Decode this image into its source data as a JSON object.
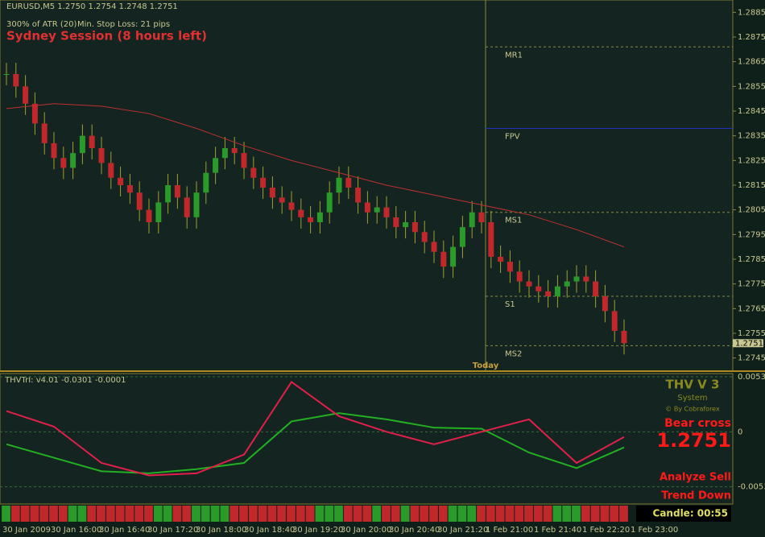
{
  "header": {
    "symbol": "EURUSD,M5  1.2750 1.2754 1.2748 1.2751",
    "atr": "300% of ATR (20)",
    "stop": "Min. Stop Loss:  21 pips",
    "session": "Sydney Session (8 hours left)"
  },
  "chart_data": {
    "type": "candlestick",
    "ylim": [
      1.274,
      1.289
    ],
    "yticks": [
      1.2885,
      1.2875,
      1.2865,
      1.2855,
      1.2845,
      1.2835,
      1.2825,
      1.2815,
      1.2805,
      1.2795,
      1.2785,
      1.2775,
      1.2765,
      1.2755,
      1.2745
    ],
    "close": [
      1.286,
      1.2855,
      1.2848,
      1.284,
      1.2832,
      1.2826,
      1.2822,
      1.2828,
      1.2835,
      1.283,
      1.2824,
      1.2818,
      1.2815,
      1.2812,
      1.2805,
      1.28,
      1.2808,
      1.2815,
      1.281,
      1.2802,
      1.2812,
      1.282,
      1.2826,
      1.283,
      1.2828,
      1.2822,
      1.2818,
      1.2814,
      1.281,
      1.2808,
      1.2805,
      1.2802,
      1.28,
      1.2804,
      1.2812,
      1.2818,
      1.2814,
      1.2808,
      1.2804,
      1.2806,
      1.2802,
      1.2798,
      1.28,
      1.2796,
      1.2792,
      1.2788,
      1.2782,
      1.279,
      1.2798,
      1.2804,
      1.28,
      1.2786,
      1.2784,
      1.278,
      1.2776,
      1.2774,
      1.2772,
      1.277,
      1.2774,
      1.2776,
      1.2778,
      1.2776,
      1.277,
      1.2764,
      1.2756,
      1.2751
    ],
    "ma": [
      1.2846,
      1.2848,
      1.2847,
      1.2844,
      1.2838,
      1.2831,
      1.2825,
      1.282,
      1.2815,
      1.2811,
      1.2807,
      1.2803,
      1.2797,
      1.279
    ],
    "up_color": "#2a9a2a",
    "down_color": "#c0282c",
    "ma_color": "#c03030",
    "levels": [
      {
        "name": "MR1",
        "value": 1.2871
      },
      {
        "name": "FPV",
        "value": 1.2838
      },
      {
        "name": "MS1",
        "value": 1.2804
      },
      {
        "name": "S1",
        "value": 1.277
      },
      {
        "name": "MS2",
        "value": 1.275
      }
    ],
    "price_label": "1.2751",
    "today": "Today",
    "xlabels": [
      "30 Jan 2009",
      "30 Jan 16:00",
      "30 Jan 16:40",
      "30 Jan 17:20",
      "30 Jan 18:00",
      "30 Jan 18:40",
      "30 Jan 19:20",
      "30 Jan 20:00",
      "30 Jan 20:40",
      "30 Jan 21:20",
      "1 Feb 21:00",
      "1 Feb 21:40",
      "1 Feb 22:20",
      "1 Feb 23:00"
    ]
  },
  "indicator": {
    "title": "THVTrI: v4.01 -0.0301 -0.0001",
    "ylim": [
      -0.0068,
      0.0053
    ],
    "yticks": [
      0.0053,
      0.0,
      -0.0053
    ],
    "green": [
      -0.0012,
      -0.0025,
      -0.0038,
      -0.004,
      -0.0036,
      -0.003,
      0.001,
      0.0018,
      0.0012,
      0.0004,
      0.0003,
      -0.002,
      -0.0035,
      -0.0015
    ],
    "red": [
      0.002,
      0.0005,
      -0.003,
      -0.0042,
      -0.004,
      -0.0022,
      0.0048,
      0.0015,
      0.0,
      -0.0012,
      0.0,
      0.0012,
      -0.003,
      -0.0005
    ],
    "green_color": "#22b022",
    "red_color": "#e0204a"
  },
  "panel": {
    "name": "THV V 3",
    "system": "System",
    "credit": "© By Cobraforex",
    "signal": "Bear cross",
    "price": "1.2751",
    "analyze": "Analyze Sell",
    "trend": "Trend Down",
    "candle": "Candle:  00:55"
  }
}
